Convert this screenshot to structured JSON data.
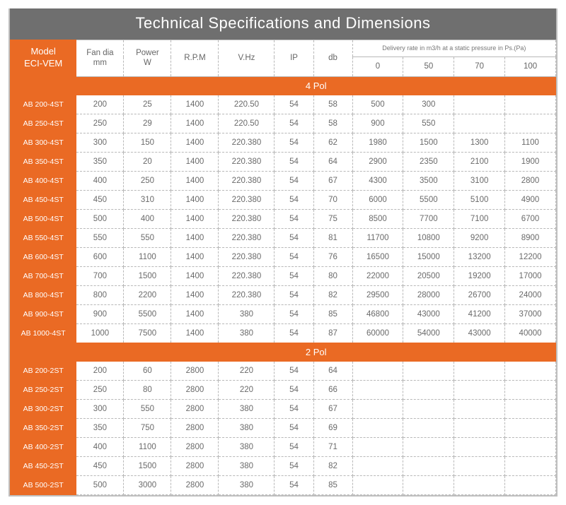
{
  "title": "Technical Specifications and Dimensions",
  "columns": {
    "model_line1": "Model",
    "model_line2": "ECI-VEM",
    "fan_dia_line1": "Fan dia",
    "fan_dia_line2": "mm",
    "power_line1": "Power",
    "power_line2": "W",
    "rpm": "R.P.M",
    "vhz": "V.Hz",
    "ip": "IP",
    "db": "db",
    "delivery_super": "Delivery rate in m3/h at a static pressure in Ps.(Pa)",
    "d0": "0",
    "d50": "50",
    "d70": "70",
    "d100": "100"
  },
  "section1_label": "4 Pol",
  "section2_label": "2 Pol",
  "rows4": [
    {
      "model": "AB 200-4ST",
      "fan": "200",
      "pw": "25",
      "rpm": "1400",
      "vhz": "220.50",
      "ip": "54",
      "db": "58",
      "d0": "500",
      "d50": "300",
      "d70": "",
      "d100": ""
    },
    {
      "model": "AB 250-4ST",
      "fan": "250",
      "pw": "29",
      "rpm": "1400",
      "vhz": "220.50",
      "ip": "54",
      "db": "58",
      "d0": "900",
      "d50": "550",
      "d70": "",
      "d100": ""
    },
    {
      "model": "AB 300-4ST",
      "fan": "300",
      "pw": "150",
      "rpm": "1400",
      "vhz": "220.380",
      "ip": "54",
      "db": "62",
      "d0": "1980",
      "d50": "1500",
      "d70": "1300",
      "d100": "1100"
    },
    {
      "model": "AB 350-4ST",
      "fan": "350",
      "pw": "20",
      "rpm": "1400",
      "vhz": "220.380",
      "ip": "54",
      "db": "64",
      "d0": "2900",
      "d50": "2350",
      "d70": "2100",
      "d100": "1900"
    },
    {
      "model": "AB 400-4ST",
      "fan": "400",
      "pw": "250",
      "rpm": "1400",
      "vhz": "220.380",
      "ip": "54",
      "db": "67",
      "d0": "4300",
      "d50": "3500",
      "d70": "3100",
      "d100": "2800"
    },
    {
      "model": "AB 450-4ST",
      "fan": "450",
      "pw": "310",
      "rpm": "1400",
      "vhz": "220.380",
      "ip": "54",
      "db": "70",
      "d0": "6000",
      "d50": "5500",
      "d70": "5100",
      "d100": "4900"
    },
    {
      "model": "AB 500-4ST",
      "fan": "500",
      "pw": "400",
      "rpm": "1400",
      "vhz": "220.380",
      "ip": "54",
      "db": "75",
      "d0": "8500",
      "d50": "7700",
      "d70": "7100",
      "d100": "6700"
    },
    {
      "model": "AB 550-4ST",
      "fan": "550",
      "pw": "550",
      "rpm": "1400",
      "vhz": "220.380",
      "ip": "54",
      "db": "81",
      "d0": "11700",
      "d50": "10800",
      "d70": "9200",
      "d100": "8900"
    },
    {
      "model": "AB 600-4ST",
      "fan": "600",
      "pw": "1100",
      "rpm": "1400",
      "vhz": "220.380",
      "ip": "54",
      "db": "76",
      "d0": "16500",
      "d50": "15000",
      "d70": "13200",
      "d100": "12200"
    },
    {
      "model": "AB 700-4ST",
      "fan": "700",
      "pw": "1500",
      "rpm": "1400",
      "vhz": "220.380",
      "ip": "54",
      "db": "80",
      "d0": "22000",
      "d50": "20500",
      "d70": "19200",
      "d100": "17000"
    },
    {
      "model": "AB 800-4ST",
      "fan": "800",
      "pw": "2200",
      "rpm": "1400",
      "vhz": "220.380",
      "ip": "54",
      "db": "82",
      "d0": "29500",
      "d50": "28000",
      "d70": "26700",
      "d100": "24000"
    },
    {
      "model": "AB 900-4ST",
      "fan": "900",
      "pw": "5500",
      "rpm": "1400",
      "vhz": "380",
      "ip": "54",
      "db": "85",
      "d0": "46800",
      "d50": "43000",
      "d70": "41200",
      "d100": "37000"
    },
    {
      "model": "AB 1000-4ST",
      "fan": "1000",
      "pw": "7500",
      "rpm": "1400",
      "vhz": "380",
      "ip": "54",
      "db": "87",
      "d0": "60000",
      "d50": "54000",
      "d70": "43000",
      "d100": "40000"
    }
  ],
  "rows2": [
    {
      "model": "AB 200-2ST",
      "fan": "200",
      "pw": "60",
      "rpm": "2800",
      "vhz": "220",
      "ip": "54",
      "db": "64",
      "d0": "",
      "d50": "",
      "d70": "",
      "d100": ""
    },
    {
      "model": "AB 250-2ST",
      "fan": "250",
      "pw": "80",
      "rpm": "2800",
      "vhz": "220",
      "ip": "54",
      "db": "66",
      "d0": "",
      "d50": "",
      "d70": "",
      "d100": ""
    },
    {
      "model": "AB 300-2ST",
      "fan": "300",
      "pw": "550",
      "rpm": "2800",
      "vhz": "380",
      "ip": "54",
      "db": "67",
      "d0": "",
      "d50": "",
      "d70": "",
      "d100": ""
    },
    {
      "model": "AB 350-2ST",
      "fan": "350",
      "pw": "750",
      "rpm": "2800",
      "vhz": "380",
      "ip": "54",
      "db": "69",
      "d0": "",
      "d50": "",
      "d70": "",
      "d100": ""
    },
    {
      "model": "AB 400-2ST",
      "fan": "400",
      "pw": "1100",
      "rpm": "2800",
      "vhz": "380",
      "ip": "54",
      "db": "71",
      "d0": "",
      "d50": "",
      "d70": "",
      "d100": ""
    },
    {
      "model": "AB 450-2ST",
      "fan": "450",
      "pw": "1500",
      "rpm": "2800",
      "vhz": "380",
      "ip": "54",
      "db": "82",
      "d0": "",
      "d50": "",
      "d70": "",
      "d100": ""
    },
    {
      "model": "AB 500-2ST",
      "fan": "500",
      "pw": "3000",
      "rpm": "2800",
      "vhz": "380",
      "ip": "54",
      "db": "85",
      "d0": "",
      "d50": "",
      "d70": "",
      "d100": ""
    }
  ]
}
